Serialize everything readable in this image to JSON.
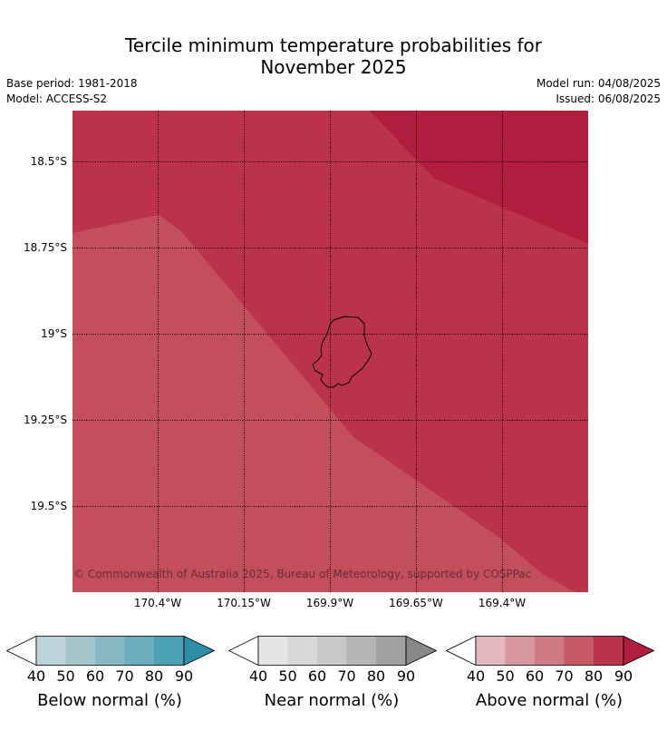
{
  "title_line1": "Tercile minimum temperature probabilities for",
  "title_line2": "November 2025",
  "meta": {
    "base_period": "Base period: 1981-2018",
    "model": "Model: ACCESS-S2",
    "model_run": "Model run: 04/08/2025",
    "issued": "Issued: 06/08/2025"
  },
  "map": {
    "lat_labels": [
      "18.5°S",
      "18.75°S",
      "19°S",
      "19.25°S",
      "19.5°S"
    ],
    "lon_labels": [
      "170.4°W",
      "170.15°W",
      "169.9°W",
      "169.65°W",
      "169.4°W"
    ],
    "copyright": "© Commonwealth of Australia 2025, Bureau of Meteorology, supported by COSPPac",
    "colors": {
      "band_70_80": "#c24f5a",
      "band_80_90": "#bb334a",
      "band_90": "#b11e3d"
    }
  },
  "colorbars": [
    {
      "label": "Below normal (%)",
      "ticks": [
        "40",
        "50",
        "60",
        "70",
        "80",
        "90"
      ],
      "colors": [
        "#ffffff",
        "#bcd3da",
        "#a5c5cc",
        "#89b7c3",
        "#6cadbe",
        "#4ca0b4",
        "#2f8ea6"
      ]
    },
    {
      "label": "Near normal (%)",
      "ticks": [
        "40",
        "50",
        "60",
        "70",
        "80",
        "90"
      ],
      "colors": [
        "#ffffff",
        "#e5e5e5",
        "#d8d8d8",
        "#c8c8c8",
        "#b5b5b5",
        "#a0a0a0",
        "#888888"
      ]
    },
    {
      "label": "Above normal (%)",
      "ticks": [
        "40",
        "50",
        "60",
        "70",
        "80",
        "90"
      ],
      "colors": [
        "#ffffff",
        "#e3b9bf",
        "#d7979f",
        "#cf7b83",
        "#c55a66",
        "#bb334a",
        "#b11e3d"
      ]
    }
  ]
}
